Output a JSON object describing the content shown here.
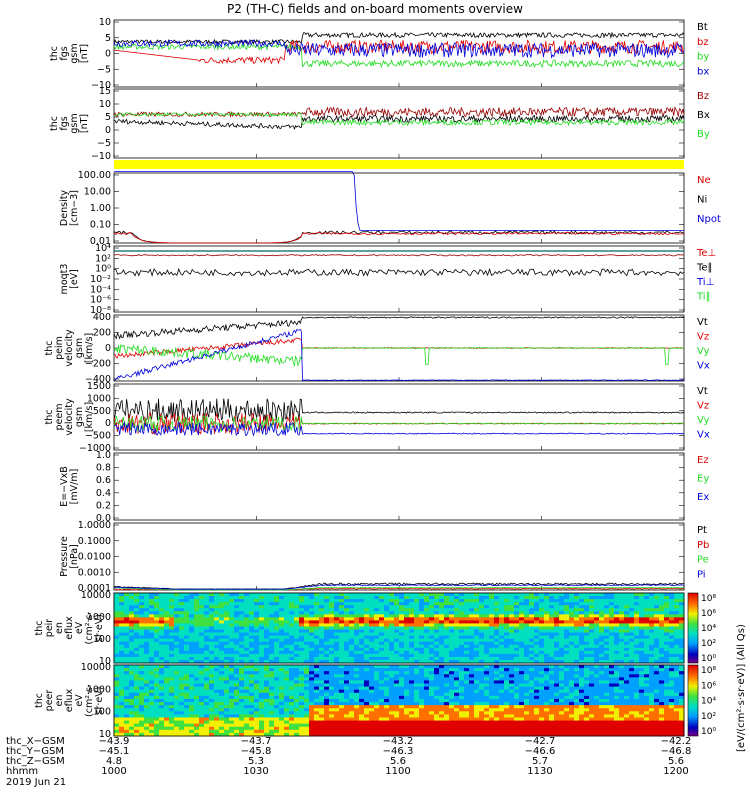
{
  "title": "P2 (TH-C) fields and on-board moments overview",
  "date_label": "2019 Jun 21",
  "colors": {
    "black": "#000000",
    "red": "#dd0000",
    "green": "#22dd22",
    "blue": "#0000dd",
    "darkred": "#990000",
    "yellow": "#ffff00",
    "teal": "#006666"
  },
  "chart_data": [
    {
      "type": "line",
      "ylabel": [
        "thc",
        "fgs",
        "gsm",
        "[nT]"
      ],
      "ylim": [
        -10,
        10
      ],
      "yticks": [
        "10",
        "5",
        "0",
        "−5",
        "−10"
      ],
      "legend": [
        {
          "name": "Bt",
          "color": "#000000"
        },
        {
          "name": "bz",
          "color": "#dd0000"
        },
        {
          "name": "by",
          "color": "#22dd22"
        },
        {
          "name": "bx",
          "color": "#0000dd"
        }
      ]
    },
    {
      "type": "line",
      "ylabel": [
        "thc",
        "fgs",
        "gsm",
        "[nT]"
      ],
      "ylim": [
        -15,
        15
      ],
      "yticks": [
        "15",
        "10",
        "5",
        "0",
        "−5",
        "−10"
      ],
      "legend": [
        {
          "name": "Bz",
          "color": "#990000"
        },
        {
          "name": "Bx",
          "color": "#000000"
        },
        {
          "name": "By",
          "color": "#22dd22"
        }
      ]
    },
    {
      "type": "line",
      "ylabel": [
        "Density",
        "[cm−3]"
      ],
      "scale": "log",
      "ylim": [
        0.01,
        100
      ],
      "yticks": [
        "100.00",
        "10.00",
        "1.00",
        "0.10",
        "0.01"
      ],
      "legend": [
        {
          "name": "Ne",
          "color": "#dd0000"
        },
        {
          "name": "Ni",
          "color": "#000000"
        },
        {
          "name": "Npot",
          "color": "#0000dd"
        }
      ]
    },
    {
      "type": "line",
      "ylabel": [
        "moqt3",
        "[eV]"
      ],
      "scale": "log",
      "yticks": [
        "10⁴",
        "10²",
        "10⁰",
        "10⁻²",
        "10⁻⁴",
        "10⁻⁶",
        "10⁻⁸"
      ],
      "legend": [
        {
          "name": "Te⊥",
          "color": "#dd0000"
        },
        {
          "name": "Te∥",
          "color": "#000000"
        },
        {
          "name": "Ti⊥",
          "color": "#0000dd"
        },
        {
          "name": "Ti∥",
          "color": "#22dd22"
        }
      ]
    },
    {
      "type": "line",
      "ylabel": [
        "thc",
        "peim",
        "velocity",
        "gsm",
        "[km/s]"
      ],
      "ylim": [
        -400,
        400
      ],
      "yticks": [
        "400",
        "200",
        "0",
        "−200",
        "−400"
      ],
      "legend": [
        {
          "name": "Vt",
          "color": "#000000"
        },
        {
          "name": "Vz",
          "color": "#dd0000"
        },
        {
          "name": "Vy",
          "color": "#22dd22"
        },
        {
          "name": "Vx",
          "color": "#0000dd"
        }
      ]
    },
    {
      "type": "line",
      "ylabel": [
        "thc",
        "peem",
        "velocity",
        "gsm",
        "[km/s]"
      ],
      "ylim": [
        -1000,
        1500
      ],
      "yticks": [
        "1500",
        "1000",
        "500",
        "0",
        "−500",
        "−1000"
      ],
      "legend": [
        {
          "name": "Vt",
          "color": "#000000"
        },
        {
          "name": "Vz",
          "color": "#dd0000"
        },
        {
          "name": "Vy",
          "color": "#22dd22"
        },
        {
          "name": "Vx",
          "color": "#0000dd"
        }
      ]
    },
    {
      "type": "line",
      "ylabel": [
        "E=−VxB",
        "[mV/m]"
      ],
      "ylim": [
        0,
        1
      ],
      "yticks": [
        "1.0",
        "0.8",
        "0.6",
        "0.4",
        "0.2",
        "0.0"
      ],
      "legend": [
        {
          "name": "Ez",
          "color": "#dd0000"
        },
        {
          "name": "Ey",
          "color": "#22dd22"
        },
        {
          "name": "Ex",
          "color": "#0000dd"
        }
      ]
    },
    {
      "type": "line",
      "ylabel": [
        "Pressure",
        "[nPa]"
      ],
      "scale": "log",
      "ylim": [
        0.0001,
        1
      ],
      "yticks": [
        "1.0000",
        "0.1000",
        "0.0100",
        "0.0010",
        "0.0001"
      ],
      "legend": [
        {
          "name": "Pt",
          "color": "#000000"
        },
        {
          "name": "Pb",
          "color": "#dd0000"
        },
        {
          "name": "Pe",
          "color": "#22dd22"
        },
        {
          "name": "Pi",
          "color": "#0000dd"
        }
      ]
    },
    {
      "type": "heatmap",
      "ylabel": [
        "thc",
        "peir",
        "en",
        "eflux",
        "eV",
        "(cm²·s·",
        "sr·eV)"
      ],
      "scale": "log",
      "yticks": [
        "10000",
        "1000",
        "100",
        "10"
      ],
      "colorbar_ticks": [
        "10⁸",
        "10⁶",
        "10⁴",
        "10²",
        "10⁰"
      ]
    },
    {
      "type": "heatmap",
      "ylabel": [
        "thc",
        "peer",
        "en",
        "eflux",
        "eV",
        "(cm²·s·",
        "sr·eV)"
      ],
      "scale": "log",
      "yticks": [
        "10000",
        "1000",
        "100",
        "10"
      ],
      "colorbar_ticks": [
        "10⁸",
        "10⁶",
        "10⁴",
        "10²",
        "10⁰"
      ]
    }
  ],
  "colorbar_label": "[eV/(cm²·s·sr·eV)] (All Qs)",
  "xaxis": {
    "row_labels": [
      "thc_X−GSM",
      "thc_Y−GSM",
      "thc_Z−GSM",
      "hhmm"
    ],
    "columns": [
      [
        "−43.9",
        "−45.1",
        "4.8",
        "1000"
      ],
      [
        "−43.7",
        "−45.8",
        "5.3",
        "1030"
      ],
      [
        "−43.2",
        "−46.3",
        "5.6",
        "1100"
      ],
      [
        "−42.7",
        "−46.6",
        "5.7",
        "1130"
      ],
      [
        "−42.2",
        "−46.8",
        "5.6",
        "1200"
      ]
    ]
  }
}
